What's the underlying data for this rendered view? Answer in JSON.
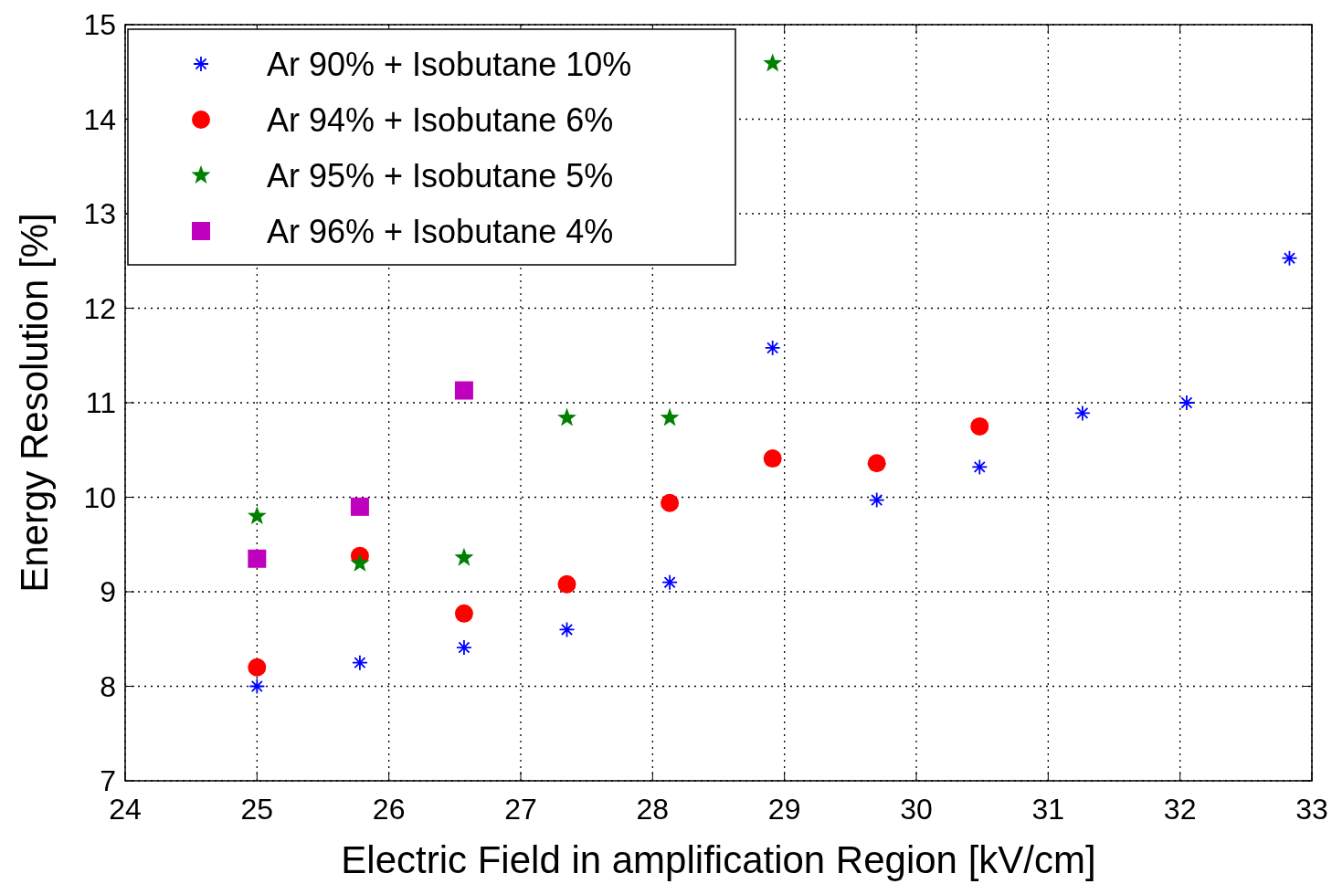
{
  "chart_data": {
    "type": "scatter",
    "xlabel": "Electric Field in amplification Region [kV/cm]",
    "ylabel": "Energy Resolution [%]",
    "xlim": [
      24,
      33
    ],
    "xticks": [
      24,
      25,
      26,
      27,
      28,
      29,
      30,
      31,
      32,
      33
    ],
    "ylim": [
      7,
      15
    ],
    "yticks": [
      7,
      8,
      9,
      10,
      11,
      12,
      13,
      14,
      15
    ],
    "grid": true,
    "legend": "top left",
    "series": [
      {
        "name": "Ar 90% + Isobutane 10%",
        "color": "#0000ff",
        "marker": "cross",
        "x": [
          25,
          25.78,
          26.57,
          27.35,
          28.13,
          28.91,
          29.7,
          30.48,
          31.26,
          32.05,
          32.83
        ],
        "values": [
          8.0,
          8.25,
          8.41,
          8.6,
          9.1,
          11.58,
          9.97,
          10.32,
          10.89,
          11.0,
          12.53
        ]
      },
      {
        "name": "Ar 94% + Isobutane 6%",
        "color": "#ff0000",
        "marker": "circle",
        "x": [
          25,
          25.78,
          26.57,
          27.35,
          28.13,
          28.91,
          29.7,
          30.48
        ],
        "values": [
          8.2,
          9.38,
          8.77,
          9.08,
          9.94,
          10.41,
          10.36,
          10.75
        ]
      },
      {
        "name": "Ar 95% + Isobutane 5%",
        "color": "#008000",
        "marker": "star",
        "x": [
          25,
          25.78,
          26.57,
          27.35,
          28.13,
          28.91
        ],
        "values": [
          9.8,
          9.3,
          9.36,
          10.84,
          10.84,
          14.59
        ]
      },
      {
        "name": "Ar 96% + Isobutane 4%",
        "color": "#bf00bf",
        "marker": "square",
        "x": [
          25,
          25.78,
          26.57
        ],
        "values": [
          9.35,
          9.9,
          11.13
        ]
      }
    ]
  }
}
